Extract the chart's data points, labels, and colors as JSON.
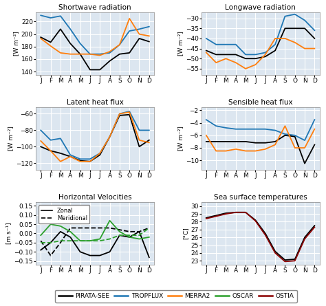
{
  "months": [
    "J",
    "F",
    "M",
    "A",
    "M",
    "J",
    "J",
    "A",
    "S",
    "O",
    "N",
    "D"
  ],
  "shortwave": {
    "title": "Shortwave radiation",
    "ylabel": "[W m⁻²]",
    "ylim": [
      135,
      235
    ],
    "yticks": [
      140,
      160,
      180,
      200,
      220
    ],
    "PIRATA-SEE": [
      195,
      187,
      208,
      185,
      168,
      143,
      143,
      157,
      168,
      170,
      193,
      188
    ],
    "TROPFLUX": [
      230,
      226,
      229,
      208,
      185,
      168,
      168,
      170,
      183,
      205,
      208,
      212
    ],
    "MERRA2": [
      193,
      181,
      170,
      168,
      168,
      168,
      166,
      172,
      183,
      225,
      200,
      197
    ]
  },
  "longwave": {
    "title": "Longwave radiation",
    "ylabel": "[W m⁻²]",
    "ylim": [
      -58,
      -27
    ],
    "yticks": [
      -55,
      -50,
      -45,
      -40,
      -35,
      -30
    ],
    "PIRATA-SEE": [
      -46,
      -48,
      -48,
      -48,
      -50,
      -50,
      -49,
      -46,
      -35,
      -35,
      -35,
      -40
    ],
    "TROPFLUX": [
      -40,
      -43,
      -43,
      -43,
      -48,
      -48,
      -47,
      -43,
      -29,
      -28,
      -31,
      -36
    ],
    "MERRA2": [
      -47,
      -52,
      -50,
      -52,
      -55,
      -53,
      -48,
      -40,
      -40,
      -42,
      -45,
      -45
    ]
  },
  "latent": {
    "title": "Latent heat flux",
    "ylabel": "[W m⁻²]",
    "ylim": [
      -128,
      -52
    ],
    "yticks": [
      -120,
      -100,
      -80,
      -60
    ],
    "PIRATA-SEE": [
      -100,
      -105,
      -108,
      -112,
      -117,
      -118,
      -110,
      -88,
      -62,
      -61,
      -100,
      -92
    ],
    "TROPFLUX": [
      -80,
      -92,
      -90,
      -110,
      -115,
      -115,
      -108,
      -88,
      -60,
      -57,
      -80,
      -80
    ],
    "MERRA2": [
      -93,
      -105,
      -118,
      -112,
      -118,
      -118,
      -108,
      -88,
      -60,
      -58,
      -92,
      -95
    ]
  },
  "sensible": {
    "title": "Sensible heat flux",
    "ylabel": "[W m⁻²]",
    "ylim": [
      -11.5,
      -1.5
    ],
    "yticks": [
      -10,
      -8,
      -6,
      -4,
      -2
    ],
    "PIRATA-SEE": [
      -7,
      -7,
      -7,
      -7,
      -7,
      -7.2,
      -7.2,
      -7,
      -6,
      -6.2,
      -10.5,
      -7.5
    ],
    "TROPFLUX": [
      -3.5,
      -4.5,
      -4.8,
      -5,
      -5,
      -5,
      -5,
      -5.2,
      -5.8,
      -6.0,
      -6.8,
      -3.5
    ],
    "MERRA2": [
      -6,
      -8.5,
      -8.5,
      -8.2,
      -8.5,
      -8.5,
      -8.2,
      -7.5,
      -4.5,
      -8.0,
      -8.0,
      -5
    ]
  },
  "velocities": {
    "title": "Horizontal Velocities",
    "ylabel": "[m s⁻¹]",
    "ylim": [
      -0.17,
      0.17
    ],
    "yticks": [
      -0.15,
      -0.1,
      -0.05,
      0.0,
      0.05,
      0.1,
      0.15
    ],
    "PIRATA-SEE_zonal": [
      -0.09,
      -0.05,
      0.01,
      -0.02,
      -0.1,
      -0.12,
      -0.12,
      -0.1,
      -0.01,
      -0.02,
      0.01,
      -0.13
    ],
    "PIRATA-SEE_meridional": [
      -0.04,
      -0.12,
      -0.05,
      0.03,
      0.03,
      0.03,
      0.03,
      0.03,
      0.02,
      0.01,
      0.01,
      0.03
    ],
    "OSCAR_zonal": [
      -0.01,
      0.05,
      0.04,
      0.01,
      -0.04,
      -0.04,
      -0.03,
      0.07,
      0.01,
      -0.02,
      -0.03,
      -0.02
    ],
    "OSCAR_meridional": [
      -0.05,
      -0.05,
      -0.04,
      -0.04,
      -0.04,
      -0.04,
      -0.04,
      -0.03,
      -0.01,
      -0.01,
      -0.01,
      0.03
    ]
  },
  "sst": {
    "title": "Sea surface temperatures",
    "ylabel": "[°C]",
    "ylim": [
      22.5,
      30.5
    ],
    "yticks": [
      23,
      24,
      25,
      26,
      27,
      28,
      29,
      30
    ],
    "PIRATA-SEE": [
      28.5,
      28.8,
      29.1,
      29.2,
      29.2,
      28.2,
      26.5,
      24.2,
      23.1,
      23.2,
      26.0,
      27.5
    ],
    "OSTIA": [
      28.4,
      28.7,
      29.0,
      29.2,
      29.2,
      28.1,
      26.3,
      24.0,
      22.9,
      23.0,
      25.8,
      27.3
    ]
  },
  "colors": {
    "PIRATA-SEE": "#000000",
    "TROPFLUX": "#1f77b4",
    "MERRA2": "#ff7f0e",
    "OSCAR": "#2ca02c",
    "OSTIA": "#8b0000"
  },
  "bg_color": "#dce6f0",
  "grid_color": "#ffffff",
  "figure_bg": "#ffffff"
}
